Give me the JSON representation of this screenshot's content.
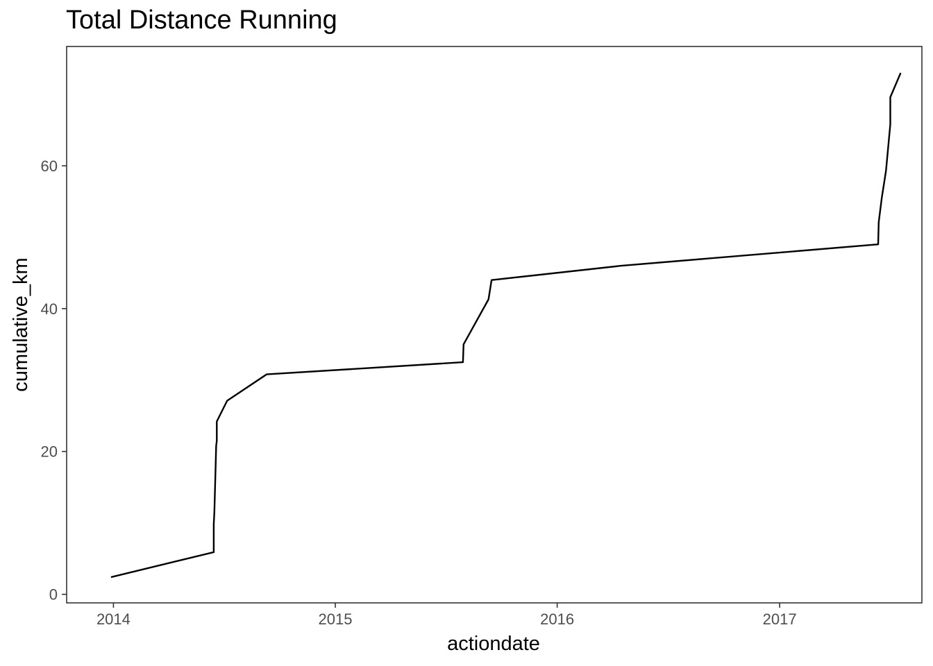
{
  "chart_data": {
    "type": "line",
    "title": "Total Distance Running",
    "xlabel": "actiondate",
    "ylabel": "cumulative_km",
    "x_scale": "date",
    "xlim": [
      "2013-10-16",
      "2017-08-23"
    ],
    "ylim": [
      -1.2,
      76.7
    ],
    "x_ticks": [
      {
        "value": "2014-01-01",
        "label": "2014"
      },
      {
        "value": "2015-01-01",
        "label": "2015"
      },
      {
        "value": "2016-01-01",
        "label": "2016"
      },
      {
        "value": "2017-01-01",
        "label": "2017"
      }
    ],
    "y_ticks": [
      {
        "value": 0,
        "label": "0"
      },
      {
        "value": 20,
        "label": "20"
      },
      {
        "value": 40,
        "label": "40"
      },
      {
        "value": 60,
        "label": "60"
      }
    ],
    "grid": false,
    "line_color": "#000000",
    "series": [
      {
        "x": [
          "2013-12-28",
          "2014-06-15",
          "2014-06-15",
          "2014-06-16",
          "2014-06-18",
          "2014-06-19",
          "2014-06-20",
          "2014-06-20",
          "2014-07-07",
          "2014-09-10",
          "2015-07-30",
          "2015-07-31",
          "2015-09-10",
          "2015-09-15",
          "2016-04-15",
          "2017-06-12",
          "2017-06-13",
          "2017-06-18",
          "2017-06-25",
          "2017-07-02",
          "2017-07-02",
          "2017-07-19"
        ],
        "y": [
          2.4,
          5.9,
          9.8,
          11.5,
          17.5,
          20.8,
          21.5,
          24.2,
          27.1,
          30.8,
          32.5,
          35.0,
          41.3,
          44.0,
          46.0,
          49.0,
          52.1,
          55.5,
          59.3,
          65.8,
          69.6,
          73.0
        ]
      }
    ]
  }
}
